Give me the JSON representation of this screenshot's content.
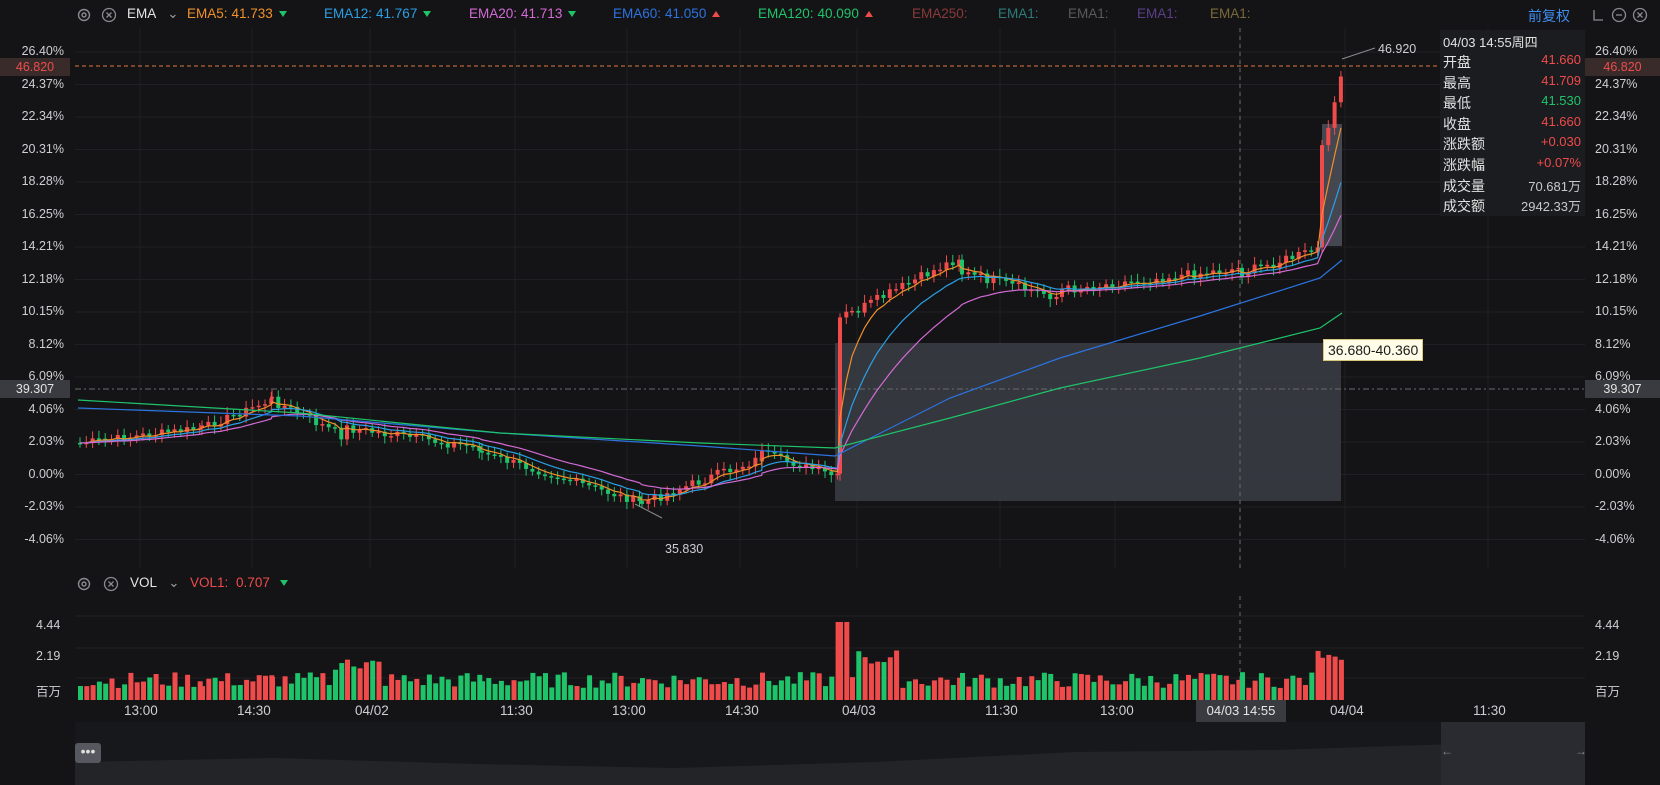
{
  "toolbar": {
    "indicator": "EMA",
    "items": [
      {
        "name": "EMA5:",
        "value": "41.733",
        "color": "#f0902a",
        "arrow": "down"
      },
      {
        "name": "EMA12:",
        "value": "41.767",
        "color": "#2aa0e6",
        "arrow": "down"
      },
      {
        "name": "EMA20:",
        "value": "41.713",
        "color": "#d46ad6",
        "arrow": "down"
      },
      {
        "name": "EMA60:",
        "value": "41.050",
        "color": "#2b74e0",
        "arrow": "up"
      },
      {
        "name": "EMA120:",
        "value": "40.090",
        "color": "#1fc46a",
        "arrow": "up"
      },
      {
        "name": "EMA250:",
        "value": "",
        "color": "#8a3a3a",
        "arrow": ""
      },
      {
        "name": "EMA1:",
        "value": "",
        "color": "#2d7b7b",
        "arrow": ""
      },
      {
        "name": "EMA1:",
        "value": "",
        "color": "#5a5a5a",
        "arrow": ""
      },
      {
        "name": "EMA1:",
        "value": "",
        "color": "#5b3f8a",
        "arrow": ""
      },
      {
        "name": "EMA1:",
        "value": "",
        "color": "#7a6a3a",
        "arrow": ""
      }
    ],
    "adjust": "前复权"
  },
  "main_axis": {
    "left_ticks": [
      "26.40%",
      "24.37%",
      "22.34%",
      "20.31%",
      "18.28%",
      "16.25%",
      "14.21%",
      "12.18%",
      "10.15%",
      "8.12%",
      "6.09%",
      "4.06%",
      "2.03%",
      "0.00%",
      "-2.03%",
      "-4.06%"
    ],
    "right_ticks": [
      "26.40%",
      "24.37%",
      "22.34%",
      "20.31%",
      "18.28%",
      "16.25%",
      "14.21%",
      "12.18%",
      "10.15%",
      "8.12%",
      "6.09%",
      "4.06%",
      "2.03%",
      "0.00%",
      "-2.03%",
      "-4.06%"
    ],
    "current_price": "46.820",
    "cursor_price": "39.307",
    "high_label": "46.920",
    "low_label": "35.830",
    "range_label": "36.680-40.360"
  },
  "info_panel": {
    "datetime": "04/03 14:55周四",
    "rows": [
      {
        "k": "开盘",
        "v": "41.660",
        "color": "#f04b4b"
      },
      {
        "k": "最高",
        "v": "41.709",
        "color": "#f04b4b"
      },
      {
        "k": "最低",
        "v": "41.530",
        "color": "#1fc46a"
      },
      {
        "k": "收盘",
        "v": "41.660",
        "color": "#f04b4b"
      },
      {
        "k": "涨跌额",
        "v": "+0.030",
        "color": "#f04b4b"
      },
      {
        "k": "涨跌幅",
        "v": "+0.07%",
        "color": "#f04b4b"
      },
      {
        "k": "成交量",
        "v": "70.681万",
        "color": "#c8c8cc"
      },
      {
        "k": "成交额",
        "v": "2942.33万",
        "color": "#c8c8cc"
      }
    ]
  },
  "volume": {
    "indicator": "VOL",
    "vol1_label": "VOL1:",
    "vol1_value": "0.707",
    "ticks": [
      "4.44",
      "2.19",
      "百万"
    ]
  },
  "time_axis": {
    "labels": [
      "13:00",
      "14:30",
      "04/02",
      "11:30",
      "13:00",
      "14:30",
      "04/03",
      "11:30",
      "13:00",
      "04/04",
      "11:30"
    ],
    "cursor_time": "04/03 14:55"
  },
  "colors": {
    "up": "#f04b4b",
    "down": "#1fc46a",
    "bg": "#141416",
    "grid": "#232428"
  }
}
